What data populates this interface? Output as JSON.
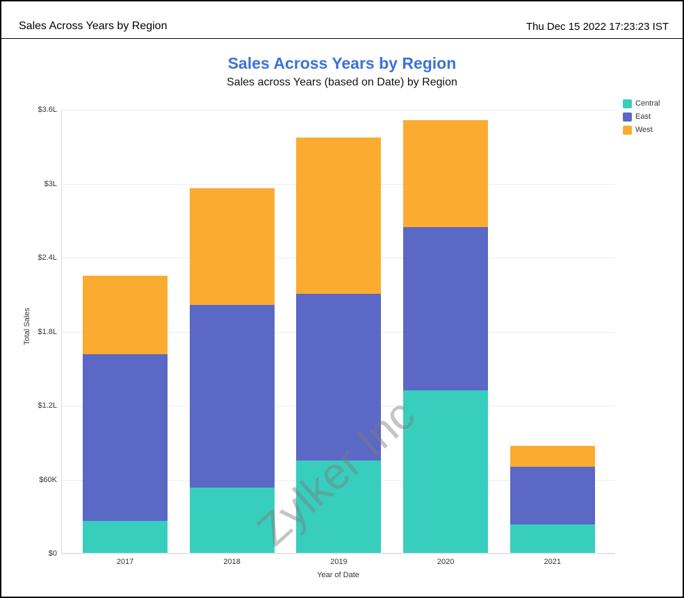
{
  "header": {
    "title": "Sales Across Years by Region",
    "timestamp": "Thu Dec 15 2022 17:23:23 IST"
  },
  "chart": {
    "watermark": "Zylker Inc",
    "colors": {
      "title": "#3B72D8",
      "grid": "#ededed",
      "axis_text": "#333333",
      "central": "#38CEBD",
      "east": "#5B68C6",
      "west": "#FBAC30"
    }
  },
  "chart_data": {
    "type": "bar",
    "stacked": true,
    "title": "Sales Across Years by Region",
    "subtitle": "Sales across Years (based on Date) by Region",
    "xlabel": "Year of Date",
    "ylabel": "Total Sales",
    "categories": [
      "2017",
      "2018",
      "2019",
      "2020",
      "2021"
    ],
    "series": [
      {
        "name": "Central",
        "color": "#38CEBD",
        "values": [
          26000,
          53000,
          75000,
          132000,
          23000
        ]
      },
      {
        "name": "East",
        "color": "#5B68C6",
        "values": [
          135000,
          148000,
          135000,
          132000,
          47000
        ]
      },
      {
        "name": "West",
        "color": "#FBAC30",
        "values": [
          64000,
          95000,
          127000,
          87000,
          17000
        ]
      }
    ],
    "totals": [
      225000,
      296000,
      337000,
      351000,
      87000
    ],
    "ylim": [
      0,
      360000
    ],
    "ytick_values": [
      0,
      60000,
      120000,
      180000,
      240000,
      300000,
      360000
    ],
    "ytick_labels": [
      "$0",
      "$60K",
      "$1.2L",
      "$1.8L",
      "$2.4L",
      "$3L",
      "$3.6L"
    ],
    "grid": true,
    "legend_position": "top-right"
  }
}
